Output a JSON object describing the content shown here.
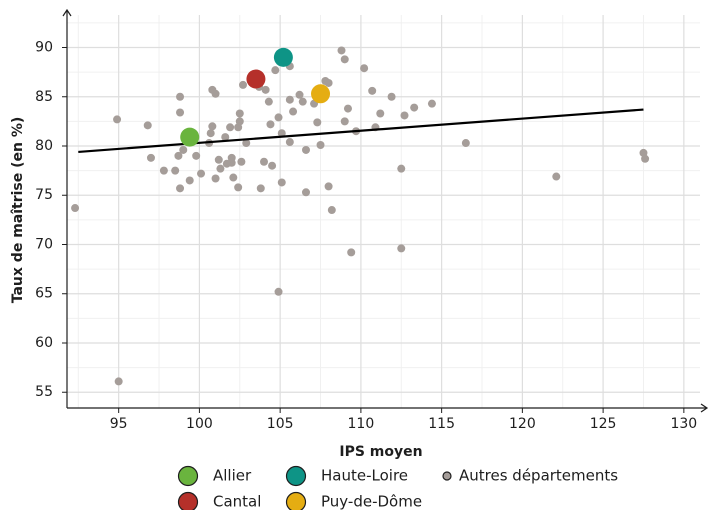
{
  "chart_data": {
    "type": "scatter",
    "xlabel": "IPS moyen",
    "ylabel": "Taux de maîtrise (en %)",
    "xlim": [
      91.8,
      131
    ],
    "ylim": [
      53.4,
      93.3
    ],
    "xticks": [
      95,
      100,
      105,
      110,
      115,
      120,
      125,
      130
    ],
    "yticks": [
      55,
      60,
      65,
      70,
      75,
      80,
      85,
      90
    ],
    "x_minor": [
      92.5,
      97.5,
      102.5,
      107.5,
      112.5,
      117.5,
      122.5,
      127.5
    ],
    "y_minor": [
      57.5,
      62.5,
      67.5,
      72.5,
      77.5,
      82.5,
      87.5,
      92.5
    ],
    "grid": true,
    "trend": {
      "color": "#000000",
      "x": [
        92.5,
        127.5
      ],
      "y": [
        79.4,
        83.7
      ]
    },
    "series": [
      {
        "name": "Allier",
        "color": "#6ab43e",
        "x": [
          99.4
        ],
        "values": [
          80.9
        ]
      },
      {
        "name": "Cantal",
        "color": "#b5302a",
        "x": [
          103.5
        ],
        "values": [
          86.8
        ]
      },
      {
        "name": "Haute-Loire",
        "color": "#0e9486",
        "x": [
          105.2
        ],
        "values": [
          89.0
        ]
      },
      {
        "name": "Puy-de-Dôme",
        "color": "#e5ad12",
        "x": [
          107.5
        ],
        "values": [
          85.3
        ]
      },
      {
        "name": "Autres départements",
        "color": "#a59d99",
        "x": [
          92.3,
          94.9,
          95.0,
          96.8,
          97.0,
          97.8,
          98.5,
          98.8,
          98.8,
          98.7,
          99.0,
          98.8,
          99.4,
          99.8,
          100.1,
          100.8,
          101.0,
          100.8,
          100.7,
          100.6,
          101.0,
          101.2,
          101.3,
          101.6,
          101.9,
          102.0,
          102.0,
          101.7,
          102.1,
          102.4,
          102.4,
          102.5,
          102.6,
          102.5,
          102.7,
          102.9,
          103.8,
          104.0,
          104.3,
          104.5,
          104.1,
          103.7,
          104.7,
          104.9,
          105.1,
          104.4,
          105.1,
          104.9,
          105.6,
          105.6,
          105.8,
          105.6,
          106.2,
          106.4,
          107.1,
          106.6,
          106.6,
          107.3,
          107.5,
          107.8,
          108.0,
          108.0,
          108.2,
          108.8,
          109.0,
          109.0,
          109.2,
          109.7,
          109.4,
          110.2,
          110.7,
          110.9,
          111.2,
          111.9,
          112.5,
          112.5,
          112.7,
          113.3,
          114.4,
          116.5,
          122.1,
          127.5,
          127.6
        ],
        "values": [
          73.7,
          82.7,
          56.1,
          82.1,
          78.8,
          77.5,
          77.5,
          85.0,
          83.4,
          79.0,
          79.6,
          75.7,
          76.5,
          79.0,
          77.2,
          85.7,
          85.3,
          82.0,
          81.3,
          80.3,
          76.7,
          78.6,
          77.7,
          80.9,
          81.9,
          78.8,
          78.3,
          78.2,
          76.8,
          75.8,
          81.9,
          82.5,
          78.4,
          83.3,
          86.2,
          80.3,
          75.7,
          78.4,
          84.5,
          78.0,
          85.7,
          86.0,
          87.7,
          82.9,
          81.3,
          82.2,
          76.3,
          65.2,
          88.1,
          84.7,
          83.5,
          80.4,
          85.2,
          84.5,
          84.3,
          79.6,
          75.3,
          82.4,
          80.1,
          86.6,
          86.4,
          75.9,
          73.5,
          89.7,
          88.8,
          82.5,
          83.8,
          81.5,
          69.2,
          87.9,
          85.6,
          81.9,
          83.3,
          85.0,
          77.7,
          69.6,
          83.1,
          83.9,
          84.3,
          80.3,
          76.9,
          79.3,
          78.7
        ]
      }
    ]
  }
}
